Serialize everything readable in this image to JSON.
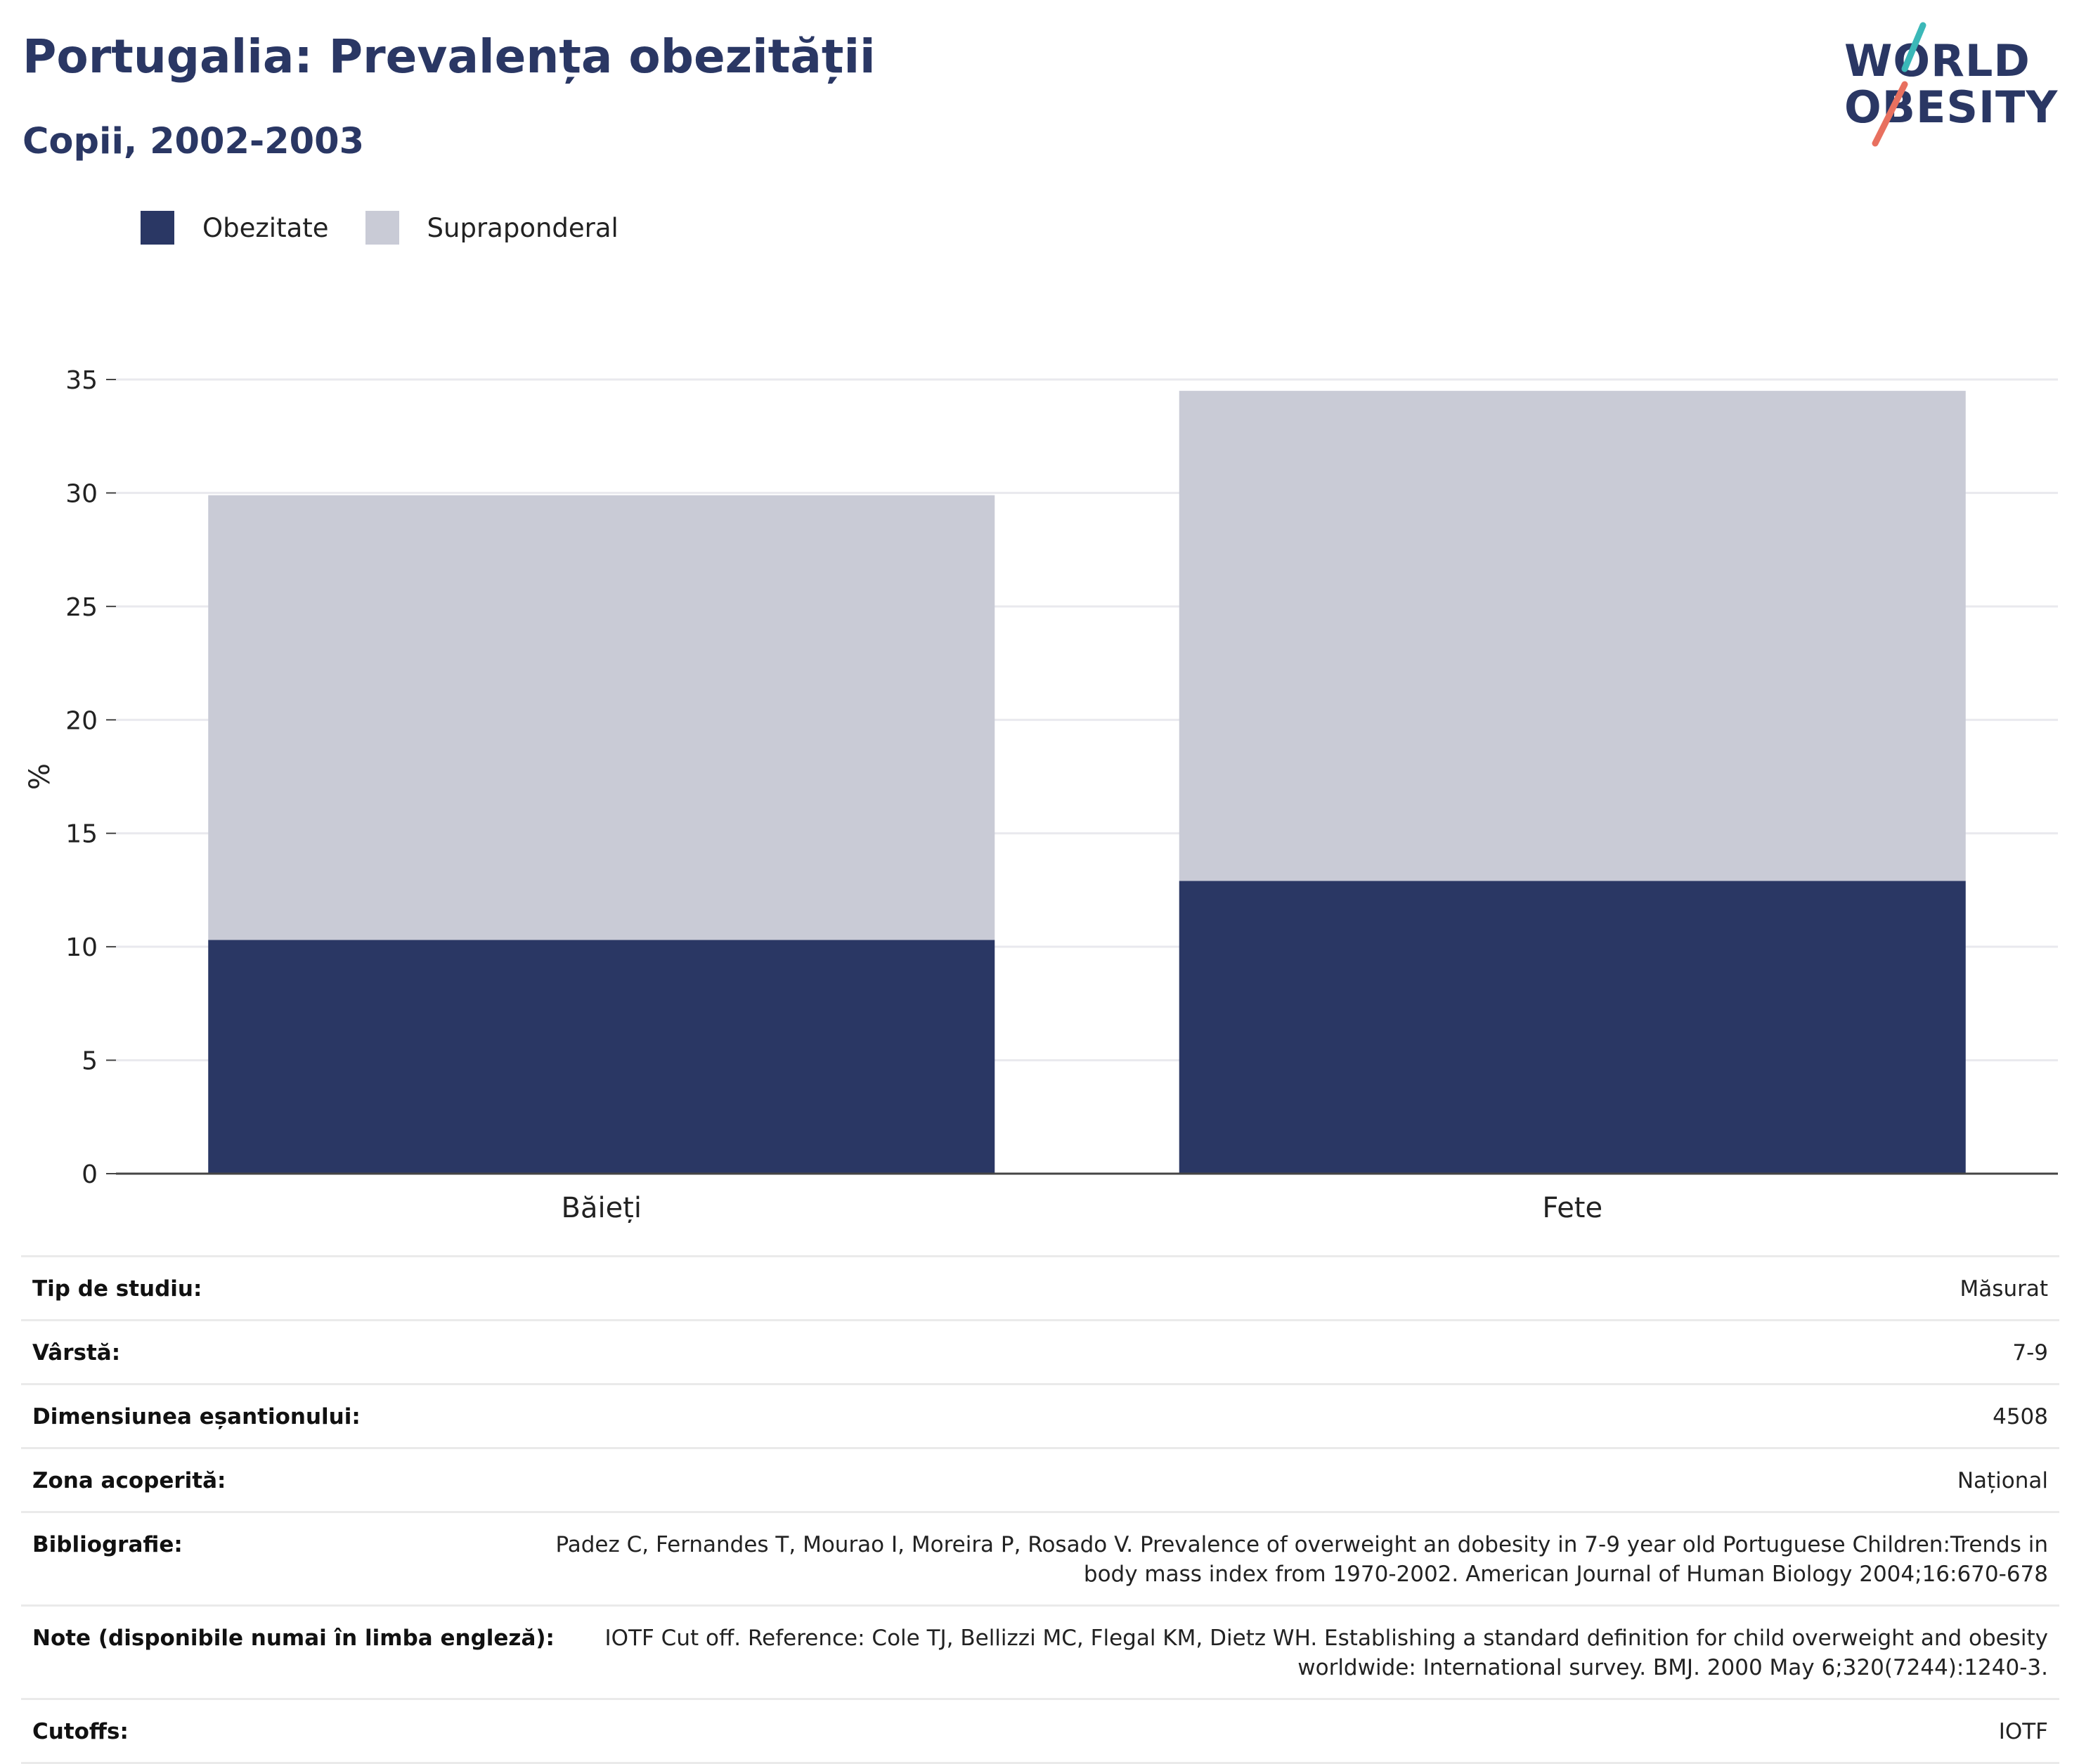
{
  "header": {
    "title": "Portugalia: Prevalența obezității",
    "subtitle": "Copii, 2002-2003"
  },
  "logo": {
    "line1": "WORLD",
    "line2": "OBESITY",
    "colors": {
      "text": "#2a3764",
      "slash_top": "#3bb8b8",
      "slash_bottom": "#e8705f"
    }
  },
  "legend": {
    "items": [
      {
        "label": "Obezitate",
        "color": "#2a3764"
      },
      {
        "label": "Supraponderal",
        "color": "#c9cbd6"
      }
    ]
  },
  "chart_data": {
    "type": "bar",
    "stacked": true,
    "categories": [
      "Băieți",
      "Fete"
    ],
    "series": [
      {
        "name": "Obezitate",
        "color": "#2a3764",
        "values": [
          10.3,
          12.9
        ]
      },
      {
        "name": "Supraponderal",
        "color": "#c9cbd6",
        "values": [
          19.6,
          21.6
        ]
      }
    ],
    "title": "Portugalia: Prevalența obezității",
    "subtitle": "Copii, 2002-2003",
    "xlabel": "",
    "ylabel": "%",
    "ylim": [
      0,
      35
    ],
    "yticks": [
      0,
      5,
      10,
      15,
      20,
      25,
      30,
      35
    ],
    "grid": true,
    "legend_position": "top-left"
  },
  "info": {
    "rows": [
      {
        "label": "Tip de studiu:",
        "value": "Măsurat"
      },
      {
        "label": "Vârstă:",
        "value": "7-9"
      },
      {
        "label": "Dimensiunea eșantionului:",
        "value": "4508"
      },
      {
        "label": "Zona acoperită:",
        "value": "Național"
      },
      {
        "label": "Bibliografie:",
        "value": "Padez C, Fernandes T, Mourao I, Moreira P, Rosado V. Prevalence of overweight an dobesity in 7-9 year old Portuguese Children:Trends in body mass index from 1970-2002. American Journal of Human Biology 2004;16:670-678"
      },
      {
        "label": "Note (disponibile numai în limba engleză):",
        "value": "IOTF Cut off. Reference: Cole TJ, Bellizzi MC, Flegal KM, Dietz WH. Establishing a standard definition for child overweight and obesity worldwide: International survey. BMJ. 2000 May 6;320(7244):1240-3."
      },
      {
        "label": "Cutoffs:",
        "value": "IOTF"
      }
    ]
  }
}
